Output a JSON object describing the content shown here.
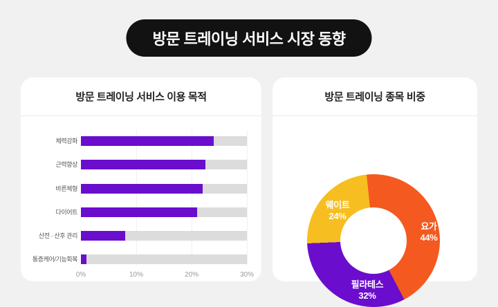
{
  "page": {
    "title": "방문 트레이닝 서비스 시장 동향"
  },
  "colors": {
    "accent_purple": "#6A0DCD",
    "accent_orange": "#F4591F",
    "accent_yellow": "#F6BE20",
    "bar_track": "#DCDCDC",
    "pill_bg": "#121212",
    "page_bg": "#F1F1F2"
  },
  "left_card": {
    "title": "방문 트레이닝 서비스 이용 목적"
  },
  "right_card": {
    "title": "방문 트레이닝 종목 비중"
  },
  "chart_data": [
    {
      "type": "bar",
      "orientation": "horizontal",
      "title": "방문 트레이닝 서비스 이용 목적",
      "categories": [
        "체력강화",
        "근력향상",
        "바른체형",
        "다이어트",
        "산전 · 산후 관리",
        "통증케어/기능회복"
      ],
      "values": [
        24,
        22.5,
        22,
        21,
        8,
        1
      ],
      "unit": "%",
      "xlim": [
        0,
        30
      ],
      "x_ticks": [
        "0%",
        "10%",
        "20%",
        "30%"
      ],
      "x_tick_values": [
        0,
        10,
        20,
        30
      ],
      "grid": "vertical-light",
      "bar_color": "#6A0DCD",
      "track_color": "#DCDCDC"
    },
    {
      "type": "pie",
      "subtype": "donut",
      "title": "방문 트레이닝 종목 비중",
      "start_angle_deg": -6,
      "direction": "clockwise",
      "slices": [
        {
          "label": "요가",
          "value": 44,
          "value_label": "44%",
          "color": "#F4591F"
        },
        {
          "label": "필라테스",
          "value": 32,
          "value_label": "32%",
          "color": "#6A0DCD"
        },
        {
          "label": "웨이트",
          "value": 24,
          "value_label": "24%",
          "color": "#F6BE20"
        }
      ]
    }
  ]
}
